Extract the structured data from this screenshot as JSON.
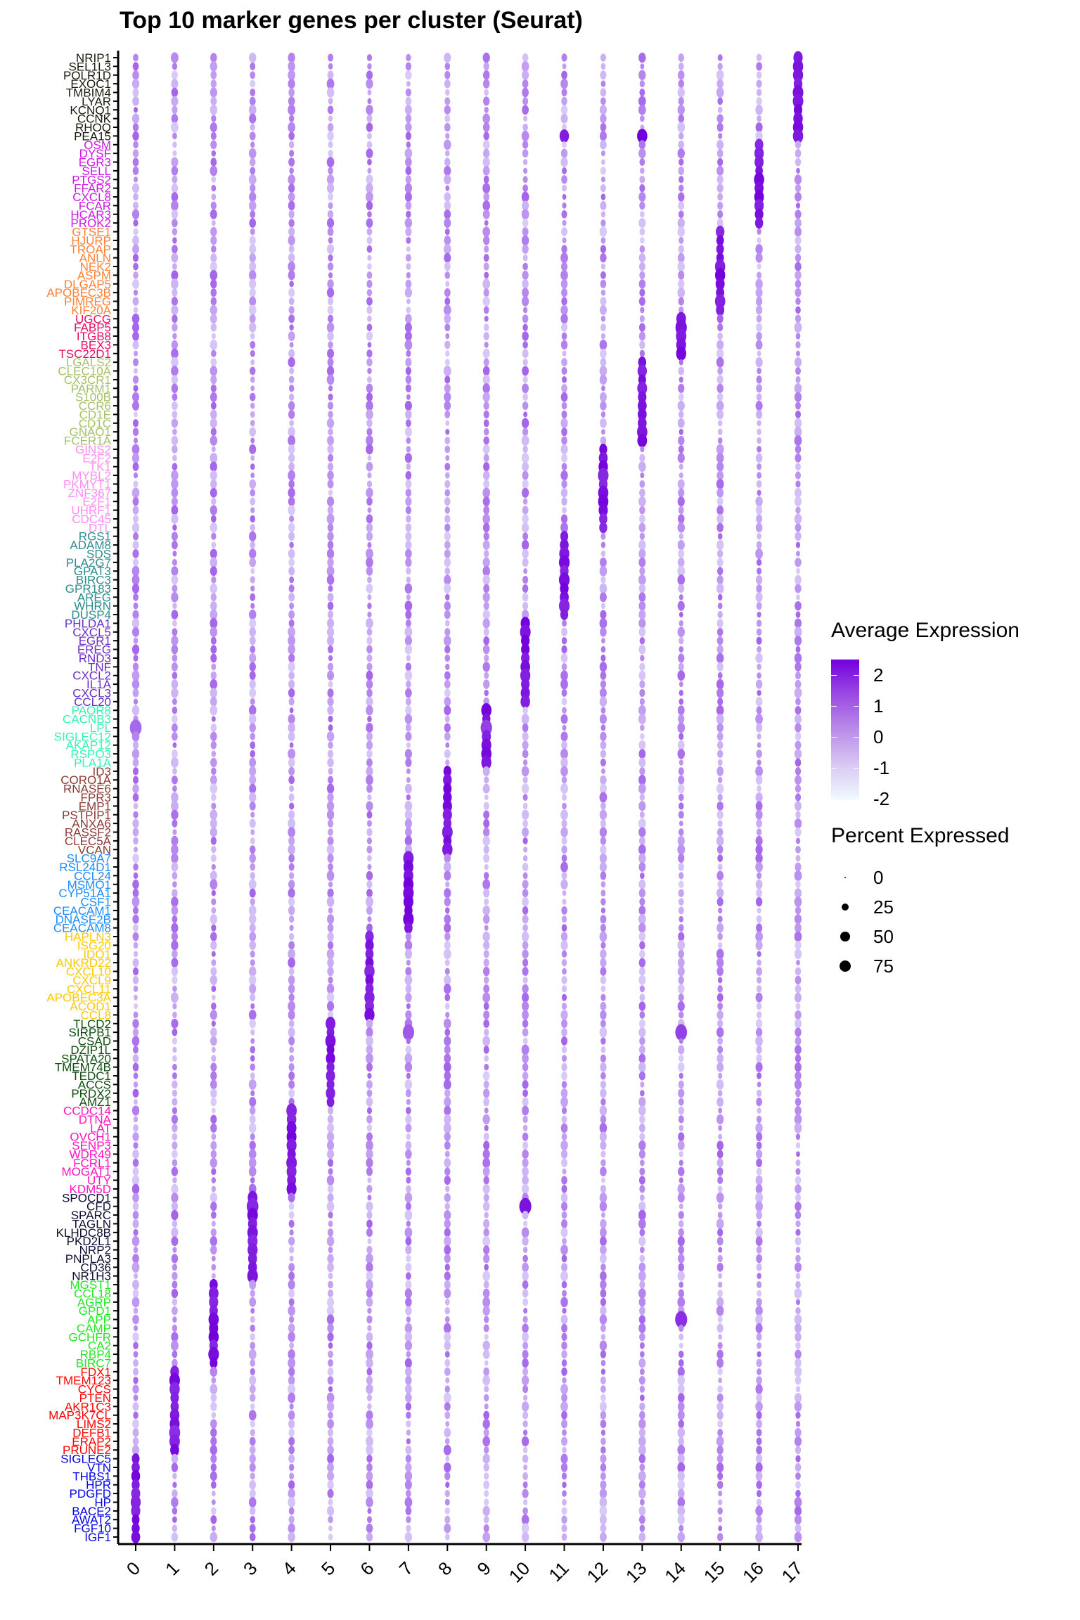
{
  "chart_data": {
    "type": "dotplot",
    "title": "Top 10 marker genes per cluster (Seurat)",
    "xlabel": "",
    "ylabel": "",
    "x_categories": [
      "0",
      "1",
      "2",
      "3",
      "4",
      "5",
      "6",
      "7",
      "8",
      "9",
      "10",
      "11",
      "12",
      "13",
      "14",
      "15",
      "16",
      "17"
    ],
    "gene_groups": [
      {
        "cluster": "0",
        "color": "#0000e6",
        "genes": [
          "SIGLEC5",
          "VTN",
          "THBS1",
          "HPR",
          "PDGFD",
          "HP",
          "BACE2",
          "AWAT2",
          "FGF10",
          "IGF1"
        ]
      },
      {
        "cluster": "1",
        "color": "#ff0000",
        "genes": [
          "FDX1",
          "TMEM123",
          "CYCS",
          "PTEN",
          "AKR1C3",
          "MAP3K7CL",
          "LIMS2",
          "DEFB1",
          "ERAP2",
          "PRUNE2"
        ]
      },
      {
        "cluster": "2",
        "color": "#22e622",
        "genes": [
          "MGST1",
          "CCL18",
          "AGRP",
          "GPD1",
          "APP",
          "CAMP",
          "GCHFR",
          "CA2",
          "RBP4",
          "BIRC7"
        ]
      },
      {
        "cluster": "3",
        "color": "#0d0d33",
        "genes": [
          "SPOCD1",
          "CFD",
          "SPARC",
          "TAGLN",
          "KLHDC8B",
          "PKD2L1",
          "NRP2",
          "PNPLA3",
          "CD36",
          "NR1H3"
        ]
      },
      {
        "cluster": "4",
        "color": "#ff10c0",
        "genes": [
          "CCDC14",
          "DTNA",
          "LAT",
          "OVCH1",
          "SENP3",
          "WDR49",
          "FCRL1",
          "MOGAT1",
          "UTY",
          "KDM5D"
        ]
      },
      {
        "cluster": "5",
        "color": "#0f4d0f",
        "genes": [
          "TLCD2",
          "SIRPB1",
          "CSAD",
          "DZIP1L",
          "SPATA20",
          "TMEM74B",
          "TEDC1",
          "ACCS",
          "PRDX2",
          "AMZ1"
        ]
      },
      {
        "cluster": "6",
        "color": "#ffc800",
        "genes": [
          "HAPLN3",
          "ISG20",
          "IDO1",
          "ANKRD22",
          "CXCL10",
          "CXCL9",
          "CXCL11",
          "APOBEC3A",
          "ACOD1",
          "CCL8"
        ]
      },
      {
        "cluster": "7",
        "color": "#1a8cff",
        "genes": [
          "SLC9A7",
          "RSL24D1",
          "CCL24",
          "MSMO1",
          "CYP51A1",
          "CSF1",
          "CEACAM1",
          "DNASE2B",
          "CEACAM8"
        ]
      },
      {
        "cluster": "8",
        "color": "#8c3a33",
        "genes": [
          "ID3",
          "CORO1A",
          "RNASE6",
          "FPR3",
          "EMP1",
          "PSTPIP1",
          "ANXA6",
          "RASSF2",
          "CLEC5A",
          "VCAN"
        ]
      },
      {
        "cluster": "9",
        "color": "#33f2b3",
        "genes": [
          "PAQR8",
          "CACNB3",
          "LPL",
          "SIGLEC12",
          "AKAP12",
          "RSPO3",
          "PLA1A"
        ]
      },
      {
        "cluster": "10",
        "color": "#6a2ec4",
        "genes": [
          "PHLDA1",
          "CXCL5",
          "EGR1",
          "EREG",
          "RND3",
          "TNF",
          "CXCL2",
          "IL1A",
          "CXCL3",
          "CCL20"
        ]
      },
      {
        "cluster": "11",
        "color": "#2a8c8c",
        "genes": [
          "RGS1",
          "ADAM8",
          "SDS",
          "PLA2G7",
          "GPAT3",
          "BIRC3",
          "GPR183",
          "AREG",
          "WHRN",
          "DUSP4"
        ]
      },
      {
        "cluster": "12",
        "color": "#ff8cf2",
        "genes": [
          "GINS2",
          "E2F2",
          "TK1",
          "MYBL2",
          "PKMYT1",
          "ZNF367",
          "E2F1",
          "UHRF1",
          "CDC45",
          "DTL"
        ]
      },
      {
        "cluster": "13",
        "color": "#a3c266",
        "genes": [
          "LGALS2",
          "CLEC10A",
          "CX3CR1",
          "PARM1",
          "S100B",
          "CCR6",
          "CD1E",
          "CD1C",
          "GNAO1",
          "FCER1A"
        ]
      },
      {
        "cluster": "14",
        "color": "#e60d66",
        "genes": [
          "UGCG",
          "FABP5",
          "ITGB8",
          "BEX3",
          "TSC22D1"
        ]
      },
      {
        "cluster": "15",
        "color": "#ff8033",
        "genes": [
          "GTSE1",
          "HJURP",
          "TROAP",
          "ANLN",
          "NEK2",
          "ASPM",
          "DLGAP5",
          "APOBEC3B",
          "PIMREG",
          "KIF20A"
        ]
      },
      {
        "cluster": "16",
        "color": "#cc19e6",
        "genes": [
          "OSM",
          "DYSF",
          "EGR3",
          "SELL",
          "PTGS2",
          "FFAR2",
          "CXCL8",
          "FCAR",
          "HCAR3",
          "PROK2"
        ]
      },
      {
        "cluster": "17",
        "color": "#1a1a0d",
        "genes": [
          "NRIP1",
          "SEL1L3",
          "POLR1D",
          "EXOC1",
          "TMBIM4",
          "LYAR",
          "KCNQ1",
          "CCNK",
          "RHOQ",
          "PEA15"
        ]
      }
    ],
    "color_scale": {
      "title": "Average Expression",
      "min": -2,
      "max": 2.3,
      "ticks": [
        "2",
        "1",
        "0",
        "-1",
        "-2"
      ],
      "low_color": "#f0fbff",
      "high_color": "#7300dc"
    },
    "size_scale": {
      "title": "Percent Expressed",
      "ticks": [
        "0",
        "25",
        "50",
        "75"
      ],
      "range": [
        0,
        100
      ]
    },
    "dot_encoding": "expression and percent arrays are per gene, per cluster 0..17; expression in [-2, 2.3], percent in [0,100], estimated from the figure",
    "notable_points": [
      {
        "gene": "PEA15",
        "cluster": "13",
        "expression": 2.3,
        "percent": 55
      },
      {
        "gene": "PEA15",
        "cluster": "11",
        "expression": 1.8,
        "percent": 45
      },
      {
        "gene": "FABP5",
        "cluster": "14",
        "expression": 2.0,
        "percent": 70
      },
      {
        "gene": "LPL",
        "cluster": "0",
        "expression": 0.5,
        "percent": 75
      },
      {
        "gene": "LPL",
        "cluster": "9",
        "expression": 1.2,
        "percent": 70
      },
      {
        "gene": "CFD",
        "cluster": "10",
        "expression": 2.0,
        "percent": 80
      },
      {
        "gene": "CFD",
        "cluster": "3",
        "expression": 1.6,
        "percent": 75
      },
      {
        "gene": "VCAN",
        "cluster": "8",
        "expression": 1.8,
        "percent": 55
      },
      {
        "gene": "SIRPB1",
        "cluster": "7",
        "expression": 0.8,
        "percent": 70
      },
      {
        "gene": "SIRPB1",
        "cluster": "14",
        "expression": 1.2,
        "percent": 75
      },
      {
        "gene": "APP",
        "cluster": "14",
        "expression": 1.5,
        "percent": 80
      },
      {
        "gene": "DEFB1",
        "cluster": "1",
        "expression": 1.5,
        "percent": 65
      }
    ]
  },
  "legend": {
    "color_title": "Average Expression",
    "size_title": "Percent Expressed"
  }
}
